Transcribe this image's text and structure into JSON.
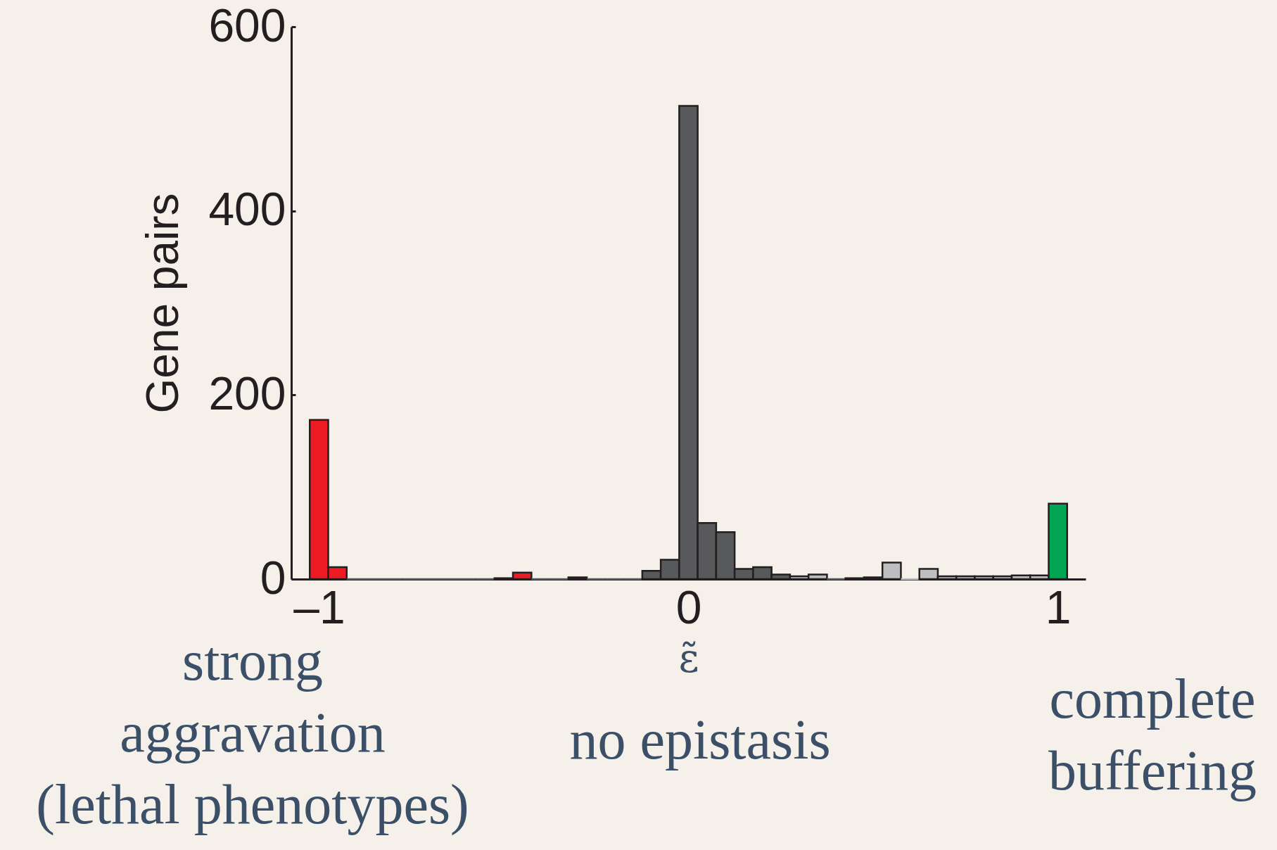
{
  "chart_data": {
    "type": "histogram",
    "xlabel": "ε̃",
    "ylabel": "Gene pairs",
    "bins": [
      -1.025,
      -0.975,
      -0.925,
      -0.875,
      -0.825,
      -0.775,
      -0.725,
      -0.675,
      -0.625,
      -0.575,
      -0.525,
      -0.475,
      -0.425,
      -0.375,
      -0.325,
      -0.275,
      -0.225,
      -0.175,
      -0.125,
      -0.075,
      -0.025,
      0.025,
      0.075,
      0.125,
      0.175,
      0.225,
      0.275,
      0.325,
      0.375,
      0.425,
      0.475,
      0.525,
      0.575,
      0.625,
      0.675,
      0.725,
      0.775,
      0.825,
      0.875,
      0.925,
      0.975,
      1.025
    ],
    "values": [
      173,
      13,
      0,
      0,
      0,
      0,
      0,
      0,
      0,
      0,
      1,
      7,
      0,
      0,
      2,
      0,
      0,
      0,
      9,
      21,
      514,
      61,
      51,
      11,
      13,
      5,
      3,
      5,
      0,
      1,
      2,
      18,
      0,
      11,
      3,
      3,
      3,
      3,
      4,
      4,
      82
    ],
    "colors": [
      "#ed1c24",
      "#ed1c24",
      "#58595b",
      "#58595b",
      "#58595b",
      "#58595b",
      "#58595b",
      "#58595b",
      "#58595b",
      "#58595b",
      "#58595b",
      "#ed1c24",
      "#58595b",
      "#58595b",
      "#58595b",
      "#58595b",
      "#58595b",
      "#58595b",
      "#58595b",
      "#58595b",
      "#58595b",
      "#58595b",
      "#58595b",
      "#58595b",
      "#58595b",
      "#58595b",
      "#bcbec0",
      "#bcbec0",
      "#58595b",
      "#58595b",
      "#58595b",
      "#bcbec0",
      "#bcbec0",
      "#bcbec0",
      "#bcbec0",
      "#bcbec0",
      "#bcbec0",
      "#bcbec0",
      "#bcbec0",
      "#bcbec0",
      "#00a651"
    ],
    "xlim": [
      -1.075,
      1.075
    ],
    "xticks": [
      {
        "value": -1,
        "label": "–1"
      },
      0,
      1
    ],
    "ylim": [
      0,
      600
    ],
    "yticks": [
      0,
      200,
      400,
      600
    ],
    "annotations": [
      "strong\naggravation\n(lethal phenotypes)",
      "no epistasis",
      "complete\nbuffering"
    ]
  }
}
